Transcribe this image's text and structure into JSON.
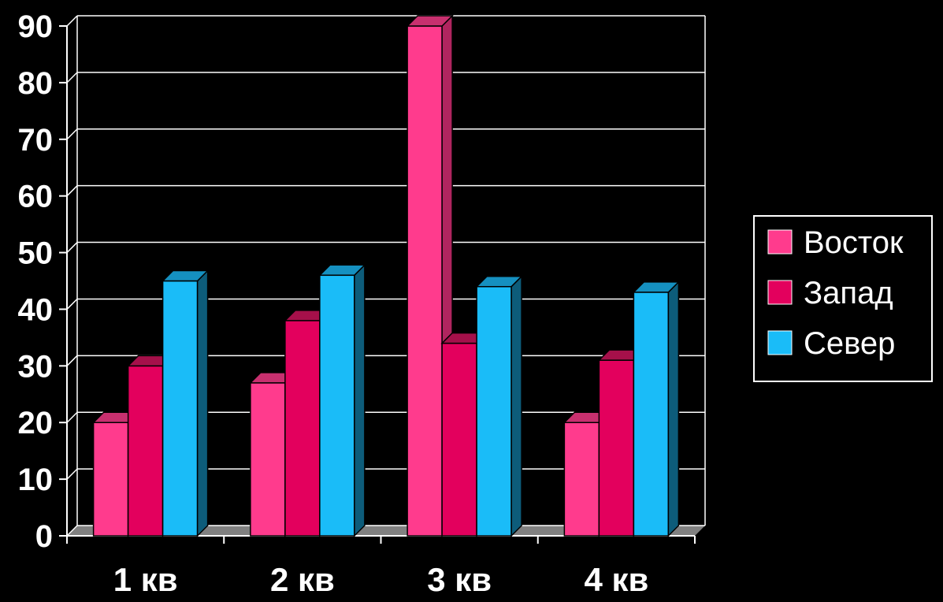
{
  "chart_data": {
    "type": "bar",
    "title": "",
    "xlabel": "",
    "ylabel": "",
    "categories": [
      "1 кв",
      "2 кв",
      "3 кв",
      "4 кв"
    ],
    "series": [
      {
        "name": "Восток",
        "values": [
          20,
          27,
          90,
          20
        ],
        "color": "#ff3b8d",
        "side": "#b0255f",
        "top": "#c8306f"
      },
      {
        "name": "Запад",
        "values": [
          30,
          38,
          34,
          31
        ],
        "color": "#e3005d",
        "side": "#8a1040",
        "top": "#a5104a"
      },
      {
        "name": "Север",
        "values": [
          45,
          46,
          44,
          43
        ],
        "color": "#1abcf8",
        "side": "#0d5c7a",
        "top": "#1590c0"
      }
    ],
    "ylim": [
      0,
      90
    ],
    "yticks": [
      "0",
      "10",
      "20",
      "30",
      "40",
      "50",
      "60",
      "70",
      "80",
      "90"
    ],
    "grid": true,
    "legend": "right",
    "colors": {
      "background": "#000000",
      "grid": "#ffffff",
      "floor": "#808080"
    }
  }
}
